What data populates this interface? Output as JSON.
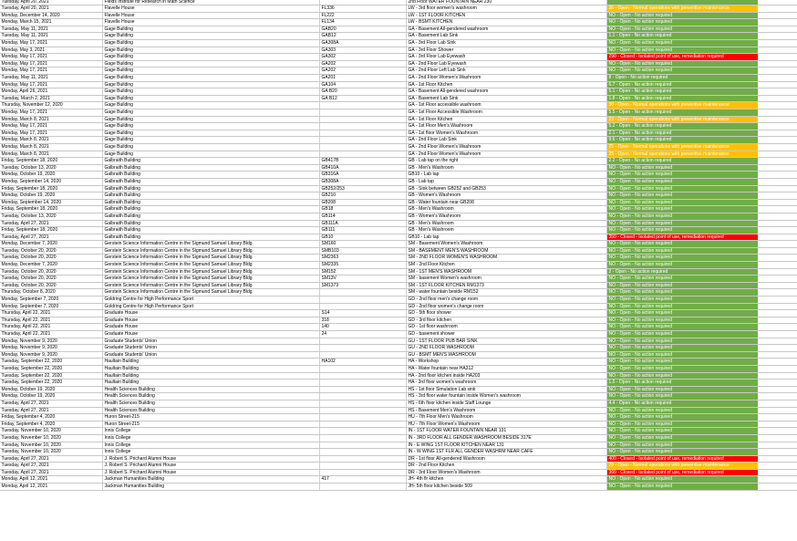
{
  "colors": {
    "no_action": "#70ad47",
    "maintenance": "#ffc000",
    "closed": "#ff0000"
  },
  "rows": [
    {
      "date": "Tuesday, April 20, 2021",
      "building": "Fields Institute for Research in Math Science",
      "room": "",
      "location": "2nd Floor WATER FOUNTAIN NEAR 230",
      "status": "",
      "color": "green"
    },
    {
      "date": "Tuesday, April 20, 2021",
      "building": "Flavelle House",
      "room": "FL336",
      "location": "LW - 3rd floor women's washroom",
      "status": "26 - Open - Normal operations with preventive maintenance",
      "color": "orange"
    },
    {
      "date": "Monday, December 14, 2020",
      "building": "Flavelle House",
      "room": "FL222",
      "location": "LW - 1ST FLOOR KITCHEN",
      "status": "NO - Open - No action required",
      "color": "green"
    },
    {
      "date": "Monday, March 15, 2021",
      "building": "Flavelle House",
      "room": "FL134",
      "location": "LW - BSMT KITCHEN",
      "status": "NO - Open - No action required",
      "color": "green"
    },
    {
      "date": "Tuesday, May 11, 2021",
      "building": "Gage Building",
      "room": "GAB20",
      "location": "GA - Basement All-gendered washroom",
      "status": "NO - Open - No action required",
      "color": "green"
    },
    {
      "date": "Tuesday, May 11, 2021",
      "building": "Gage Building",
      "room": "GAB12",
      "location": "GA - Basement Lab Sink",
      "status": "1.1 - Open - No action required",
      "color": "green"
    },
    {
      "date": "Monday, May 17, 2021",
      "building": "Gage Building",
      "room": "GA308A",
      "location": "GA - 3rd Floor Lab Sink",
      "status": "NO - Open - No action required",
      "color": "green"
    },
    {
      "date": "Monday, May 3, 2021",
      "building": "Gage Building",
      "room": "GA303",
      "location": "GA - 3rd Floor Shower",
      "status": "NO - Open - No action required",
      "color": "green"
    },
    {
      "date": "Monday, May 17, 2021",
      "building": "Gage Building",
      "room": "GA302",
      "location": "GA - 3rd Floor Lab Eyewash",
      "status": "290 - Closed - Isolated point of use, remediation required",
      "color": "red"
    },
    {
      "date": "Monday, May 17, 2021",
      "building": "Gage Building",
      "room": "GA202",
      "location": "GA - 2nd Floor Lab Eyewash",
      "status": "NO - Open - No action required",
      "color": "green"
    },
    {
      "date": "Monday, May 17, 2021",
      "building": "Gage Building",
      "room": "GA202",
      "location": "GA - 2nd Floor Left Lab Sink",
      "status": "NO - Open - No action required",
      "color": "green"
    },
    {
      "date": "Tuesday, May 11, 2021",
      "building": "Gage Building",
      "room": "GA201",
      "location": "GA - 2nd Floor Women's Washroom",
      "status": "8 - Open - No action required",
      "color": "green"
    },
    {
      "date": "Monday, May 17, 2021",
      "building": "Gage Building",
      "room": "GA104",
      "location": "GA - 1st Floor Kitchen",
      "status": "6.7 - Open - No action required",
      "color": "green"
    },
    {
      "date": "Monday, April 26, 2021",
      "building": "Gage Building",
      "room": "GA B20",
      "location": "GA - Basement All-gendered washroom",
      "status": "5.1 - Open - No action required",
      "color": "green"
    },
    {
      "date": "Tuesday, March 2, 2021",
      "building": "Gage Building",
      "room": "GA B12",
      "location": "GA - Basement Lab Sink",
      "status": "1.8 - Open - No action required",
      "color": "green"
    },
    {
      "date": "Thursday, November 12, 2020",
      "building": "Gage Building",
      "room": "",
      "location": "GA - 1st Floor accessible washroom",
      "status": "30 - Open - Normal operations with preventive maintenance",
      "color": "orange"
    },
    {
      "date": "Monday, May 17, 2021",
      "building": "Gage Building",
      "room": "",
      "location": "GA - 1st Floor Accessible Washroom",
      "status": "5.5 - Open - No action required",
      "color": "green"
    },
    {
      "date": "Monday, March 8, 2021",
      "building": "Gage Building",
      "room": "",
      "location": "GA - 1st Floor Kitchen",
      "status": "23 - Open - Normal operations with preventive maintenance",
      "color": "orange"
    },
    {
      "date": "Monday, May 17, 2021",
      "building": "Gage Building",
      "room": "",
      "location": "GA - 1st Floor Men's Washroom",
      "status": "5.2 - Open - No action required",
      "color": "green"
    },
    {
      "date": "Monday, May 17, 2021",
      "building": "Gage Building",
      "room": "",
      "location": "GA - 1st floor Women's Washroom",
      "status": "2.1 - Open - No action required",
      "color": "green"
    },
    {
      "date": "Monday, March 8, 2021",
      "building": "Gage Building",
      "room": "",
      "location": "GA - 2nd Floor Lab Sink",
      "status": "9.6 - Open - No action required",
      "color": "green"
    },
    {
      "date": "Monday, March 8, 2021",
      "building": "Gage Building",
      "room": "",
      "location": "GA - 2nd Floor Women's Washroom",
      "status": "25 - Open - Normal operations with preventive maintenance",
      "color": "orange"
    },
    {
      "date": "Monday, March 8, 2021",
      "building": "Gage Building",
      "room": "",
      "location": "GA - 2nd Floor Women's Washroom",
      "status": "25 - Open - Normal operations with preventive maintenance",
      "color": "orange"
    },
    {
      "date": "Friday, September 18, 2020",
      "building": "Galbraith Building",
      "room": "GB417B",
      "location": "GB - Lab tap on the right",
      "status": "2.2 - Open - No action required",
      "color": "green"
    },
    {
      "date": "Tuesday, October 13, 2020",
      "building": "Galbraith Building",
      "room": "GB410A",
      "location": "GB - Men's Washroom",
      "status": "NO - Open - No action required",
      "color": "green"
    },
    {
      "date": "Monday, October 19, 2020",
      "building": "Galbraith Building",
      "room": "GB316A",
      "location": "GB10 - Lab tap",
      "status": "NO - Open - No action required",
      "color": "green"
    },
    {
      "date": "Monday, September 14, 2020",
      "building": "Galbraith Building",
      "room": "GB308A",
      "location": "GB - Lab tap",
      "status": "NO - Open - No action required",
      "color": "green"
    },
    {
      "date": "Friday, September 18, 2020",
      "building": "Galbraith Building",
      "room": "GB252/253",
      "location": "GB - Sink between GB252 and GB253",
      "status": "NO - Open - No action required",
      "color": "green"
    },
    {
      "date": "Monday, October 19, 2020",
      "building": "Galbraith Building",
      "room": "GB210",
      "location": "GB - Women's Washroom",
      "status": "NO - Open - No action required",
      "color": "green"
    },
    {
      "date": "Monday, September 14, 2020",
      "building": "Galbraith Building",
      "room": "GB208",
      "location": "GB - Water fountain near GB208",
      "status": "NO - Open - No action required",
      "color": "green"
    },
    {
      "date": "Friday, September 18, 2020",
      "building": "Galbraith Building",
      "room": "GB18",
      "location": "GB - Men's Washroom",
      "status": "NO - Open - No action required",
      "color": "green"
    },
    {
      "date": "Tuesday, October 13, 2020",
      "building": "Galbraith Building",
      "room": "GB114",
      "location": "GB - Women's Washroom",
      "status": "NO - Open - No action required",
      "color": "green"
    },
    {
      "date": "Tuesday, April 27, 2021",
      "building": "Galbraith Building",
      "room": "GB111A",
      "location": "GB - Men's Washroom",
      "status": "NO - Open - No action required",
      "color": "green"
    },
    {
      "date": "Friday, September 18, 2020",
      "building": "Galbraith Building",
      "room": "GB111",
      "location": "GB - Men's Washroom",
      "status": "NO - Open - No action required",
      "color": "green"
    },
    {
      "date": "Tuesday, April 27, 2021",
      "building": "Galbraith Building",
      "room": "GB10",
      "location": "GB10 - Lab tap",
      "status": "350 - Closed - Isolated point of use, remediation required",
      "color": "red"
    },
    {
      "date": "Monday, December 7, 2020",
      "building": "Gerstein Science Information Centre in the Sigmund Samuel Library Bldg",
      "room": "SM160",
      "location": "SM - Basement Women's Washroom",
      "status": "NO - Open - No action required",
      "color": "green"
    },
    {
      "date": "Tuesday, October 20, 2020",
      "building": "Gerstein Science Information Centre in the Sigmund Samuel Library Bldg",
      "room": "SMB103",
      "location": "SM - BASEMENT MEN'S WASHROOM",
      "status": "NO - Open - No action required",
      "color": "green"
    },
    {
      "date": "Tuesday, October 20, 2020",
      "building": "Gerstein Science Information Centre in the Sigmund Samuel Library Bldg",
      "room": "SM2363",
      "location": "SM - 2ND FLOOR WOMEN'S WASHROOM",
      "status": "NO - Open - No action required",
      "color": "green"
    },
    {
      "date": "Monday, December 7, 2020",
      "building": "Gerstein Science Information Centre in the Sigmund Samuel Library Bldg",
      "room": "SM2335",
      "location": "SM - 2nd Floor Kitchen",
      "status": "NO - Open - No action required",
      "color": "green"
    },
    {
      "date": "Tuesday, October 20, 2020",
      "building": "Gerstein Science Information Centre in the Sigmund Samuel Library Bldg",
      "room": "SM152",
      "location": "SM - 1ST MEN'S WASHROOM",
      "status": "2 - Open - No action required",
      "color": "green"
    },
    {
      "date": "Tuesday, October 20, 2020",
      "building": "Gerstein Science Information Centre in the Sigmund Samuel Library Bldg",
      "room": "SM13V",
      "location": "SM - basement Women's washroom",
      "status": "NO - Open - No action required",
      "color": "green"
    },
    {
      "date": "Tuesday, October 20, 2020",
      "building": "Gerstein Science Information Centre in the Sigmund Samuel Library Bldg",
      "room": "SM1373",
      "location": "SM - 1ST FLOOR KITCHEN RM1373",
      "status": "NO - Open - No action required",
      "color": "green"
    },
    {
      "date": "Thursday, October 8, 2020",
      "building": "Gerstein Science Information Centre in the Sigmund Samuel Library Bldg",
      "room": "",
      "location": "SM - water fountain beside RM152",
      "status": "NO - Open - No action required",
      "color": "green"
    },
    {
      "date": "Monday, September 7, 2020",
      "building": "Goldring Centre for High Performance Sport",
      "room": "",
      "location": "GD - 2nd floor men's change room",
      "status": "NO - Open - No action required",
      "color": "green"
    },
    {
      "date": "Monday, September 7, 2020",
      "building": "Goldring Centre for High Performance Sport",
      "room": "",
      "location": "GD - 2nd floor women's change room",
      "status": "NO - Open - No action required",
      "color": "green"
    },
    {
      "date": "Thursday, April 22, 2021",
      "building": "Graduate House",
      "room": "S14",
      "location": "GD - 5th floor shower",
      "status": "NO - Open - No action required",
      "color": "green"
    },
    {
      "date": "Thursday, April 22, 2021",
      "building": "Graduate House",
      "room": "318",
      "location": "GD - 3rd floor kitchen",
      "status": "NO - Open - No action required",
      "color": "green"
    },
    {
      "date": "Thursday, April 22, 2021",
      "building": "Graduate House",
      "room": "140",
      "location": "GD - 1st floor washroom",
      "status": "NO - Open - No action required",
      "color": "green"
    },
    {
      "date": "Thursday, April 22, 2021",
      "building": "Graduate House",
      "room": "24",
      "location": "GD - basement shower",
      "status": "NO - Open - No action required",
      "color": "green"
    },
    {
      "date": "Monday, November 9, 2020",
      "building": "Graduate Students' Union",
      "room": "",
      "location": "GU - 1ST FLOOR PUB BAR SINK",
      "status": "NO - Open - No action required",
      "color": "green"
    },
    {
      "date": "Monday, November 9, 2020",
      "building": "Graduate Students' Union",
      "room": "",
      "location": "GU - 2ND FLOOR WASHROOM",
      "status": "NO - Open - No action required",
      "color": "green"
    },
    {
      "date": "Monday, November 9, 2020",
      "building": "Graduate Students' Union",
      "room": "",
      "location": "GU - BSMT MEN'S WASHROOM",
      "status": "NO - Open - No action required",
      "color": "green"
    },
    {
      "date": "Tuesday, September 22, 2020",
      "building": "Haultain Building",
      "room": "HA102",
      "location": "HA - Workshop",
      "status": "NO - Open - No action required",
      "color": "green"
    },
    {
      "date": "Tuesday, September 22, 2020",
      "building": "Haultain Building",
      "room": "",
      "location": "HA - Water fountain near HA312",
      "status": "NO - Open - No action required",
      "color": "green"
    },
    {
      "date": "Tuesday, September 22, 2020",
      "building": "Haultain Building",
      "room": "",
      "location": "HA - 2nd floor kitchen inside HA203",
      "status": "NO - Open - No action required",
      "color": "green"
    },
    {
      "date": "Tuesday, September 22, 2020",
      "building": "Haultain Building",
      "room": "",
      "location": "HA - 3rd floor women's washroom",
      "status": "1.5 - Open - No action required",
      "color": "green"
    },
    {
      "date": "Monday, October 19, 2020",
      "building": "Health Sciences Building",
      "room": "",
      "location": "HS - 1st floor Simulation Lab sink",
      "status": "NO - Open - No action required",
      "color": "green"
    },
    {
      "date": "Monday, October 19, 2020",
      "building": "Health Sciences Building",
      "room": "",
      "location": "HS - 3rd floor water fountain inside Women's washroom",
      "status": "NO - Open - No action required",
      "color": "green"
    },
    {
      "date": "Tuesday, April 27, 2021",
      "building": "Health Sciences Building",
      "room": "",
      "location": "HS - 6th floor kitchen inside Staff Lounge",
      "status": "4.4 - Open - No action required",
      "color": "green"
    },
    {
      "date": "Tuesday, April 27, 2021",
      "building": "Health Sciences Building",
      "room": "",
      "location": "HS - Basement Men's Washroom",
      "status": "NO - Open - No action required",
      "color": "green"
    },
    {
      "date": "Friday, September 4, 2020",
      "building": "Huron Street-215",
      "room": "",
      "location": "HU - 7th Floor Men's Washroom",
      "status": "NO - Open - No action required",
      "color": "green"
    },
    {
      "date": "Friday, September 4, 2020",
      "building": "Huron Street-215",
      "room": "",
      "location": "HU - 7th Floor Women's Washroom",
      "status": "NO - Open - No action required",
      "color": "green"
    },
    {
      "date": "Tuesday, November 10, 2020",
      "building": "Innis College",
      "room": "",
      "location": "IN - 1ST FLOOR WATER FOUNTAIN NEAR 131",
      "status": "NO - Open - No action required",
      "color": "green"
    },
    {
      "date": "Tuesday, November 10, 2020",
      "building": "Innis College",
      "room": "",
      "location": "IN - 3RD FLOOR ALL GENDER WASHROOM BESIDE 317E",
      "status": "NO - Open - No action required",
      "color": "green"
    },
    {
      "date": "Tuesday, November 10, 2020",
      "building": "Innis College",
      "room": "",
      "location": "IN - E WING 1ST FLOOR KITCHEN NEAR 131",
      "status": "NO - Open - No action required",
      "color": "green"
    },
    {
      "date": "Tuesday, November 10, 2020",
      "building": "Innis College",
      "room": "",
      "location": "IN - W WING 1ST FLR ALL GENDER WASHRM NEAR CAFE",
      "status": "NO - Open - No action required",
      "color": "green"
    },
    {
      "date": "Tuesday, April 27, 2021",
      "building": "J. Robert S. Prichard Alumni House",
      "room": "",
      "location": "DR - 1st floor All-gendered Washroom",
      "status": "400 - Closed - Isolated point of use, remediation required",
      "color": "red"
    },
    {
      "date": "Tuesday, April 27, 2021",
      "building": "J. Robert S. Prichard Alumni House",
      "room": "",
      "location": "DR - 2nd Floor Kitchen",
      "status": "28 - Open - Normal operations with preventive maintenance",
      "color": "orange"
    },
    {
      "date": "Tuesday, April 27, 2021",
      "building": "J. Robert S. Prichard Alumni House",
      "room": "",
      "location": "DR - 3rd Floor Women's Washroom",
      "status": "360 - Closed - Isolated point of use, remediation required",
      "color": "red"
    },
    {
      "date": "Monday, April 12, 2021",
      "building": "Jackman Humanities Building",
      "room": "417",
      "location": "JH- 4th flr kitchen",
      "status": "NO - Open - No action required",
      "color": "green"
    },
    {
      "date": "Monday, April 12, 2021",
      "building": "Jackman Humanities Building",
      "room": "",
      "location": "JH- 5th floor kitchen beside 509",
      "status": "NO - Open - No action required",
      "color": "green"
    }
  ]
}
